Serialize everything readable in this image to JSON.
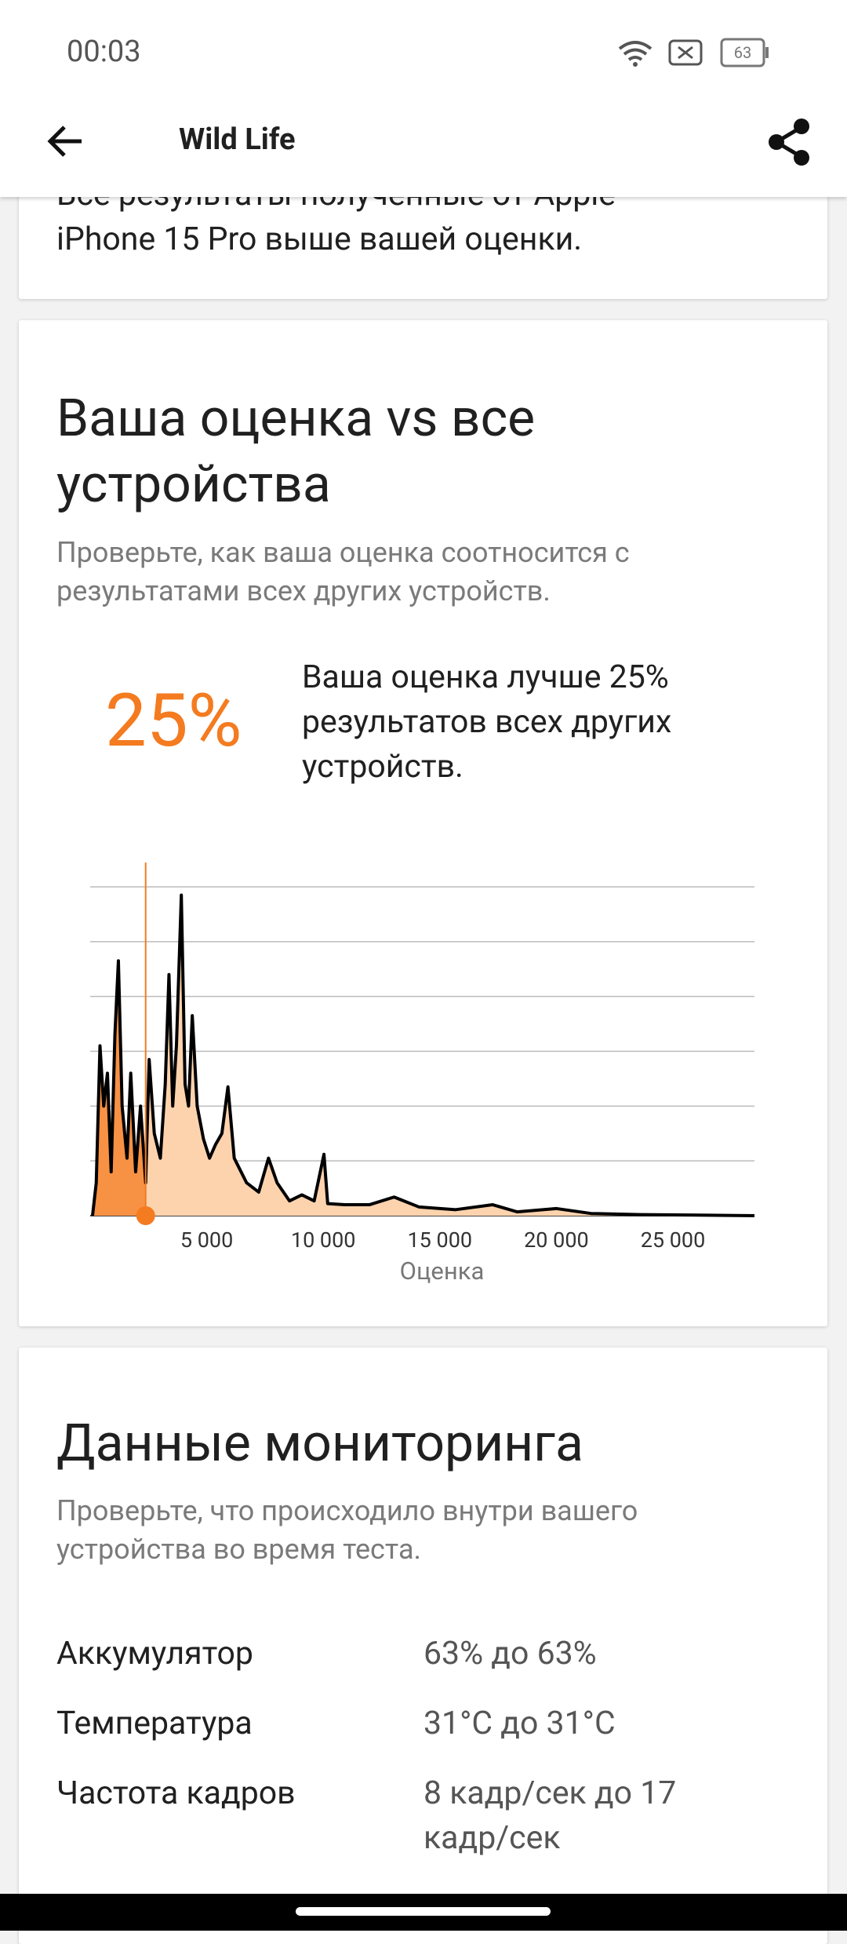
{
  "status_bar": {
    "time": "00:03",
    "battery": "63"
  },
  "app_bar": {
    "title": "Wild Life"
  },
  "previous_card": {
    "lines": [
      "Все результаты полученные от Apple",
      "iPhone 15 Pro выше вашей оценки."
    ]
  },
  "comparison": {
    "title": "Ваша оценка vs все устройства",
    "subtitle": "Проверьте, как ваша оценка соотносится с результатами всех других устройств.",
    "percentile": "25%",
    "description": "Ваша оценка лучше 25% результатов всех других устройств.",
    "chart_data": {
      "type": "line",
      "x_label": "Оценка",
      "color": "#000000",
      "fill": "#fdd3ae",
      "highlight_color": "#f47b20",
      "user_score": 2380,
      "x": [
        100,
        260,
        420,
        580,
        740,
        900,
        1060,
        1210,
        1370,
        1580,
        1740,
        1950,
        2160,
        2380,
        2530,
        2750,
        3010,
        3220,
        3380,
        3540,
        3700,
        3910,
        4070,
        4220,
        4380,
        4590,
        4860,
        5120,
        5380,
        5650,
        5910,
        6180,
        6710,
        7230,
        7650,
        8020,
        8550,
        9080,
        9610,
        10030,
        10190,
        10920,
        11980,
        13040,
        14100,
        15680,
        17270,
        18320,
        20010,
        21490,
        23600,
        28500
      ],
      "values": [
        0,
        0.6,
        3.1,
        2.0,
        2.6,
        0.8,
        3.3,
        4.65,
        2.0,
        1.05,
        2.6,
        0.8,
        2.0,
        0.6,
        2.85,
        1.5,
        1.05,
        2.4,
        4.4,
        2.0,
        3.1,
        5.85,
        2.4,
        2.0,
        3.65,
        2.0,
        1.4,
        1.05,
        1.3,
        1.5,
        2.35,
        1.05,
        0.6,
        0.43,
        1.05,
        0.6,
        0.27,
        0.38,
        0.27,
        1.12,
        0.22,
        0.2,
        0.2,
        0.34,
        0.16,
        0.11,
        0.2,
        0.07,
        0.13,
        0.04,
        0.02,
        0
      ],
      "xlim": [
        0,
        28500
      ],
      "xticks": [
        {
          "value": 5000,
          "label": "5 000"
        },
        {
          "value": 10000,
          "label": "10 000"
        },
        {
          "value": 15000,
          "label": "15 000"
        },
        {
          "value": 20000,
          "label": "20 000"
        },
        {
          "value": 25000,
          "label": "25 000"
        }
      ],
      "ylim": [
        0,
        6
      ],
      "yticks": [
        0,
        1,
        2,
        3,
        4,
        5,
        6
      ],
      "grid": true
    }
  },
  "monitoring": {
    "title": "Данные мониторинга",
    "subtitle": "Проверьте, что происходило внутри вашего устройства во время теста.",
    "rows": [
      [
        "Аккумулятор",
        "63% до 63%"
      ],
      [
        "Температура",
        "31°C до 31°C"
      ],
      [
        "Частота кадров",
        "8 кадр/сек до 17 кадр/сек"
      ]
    ]
  }
}
